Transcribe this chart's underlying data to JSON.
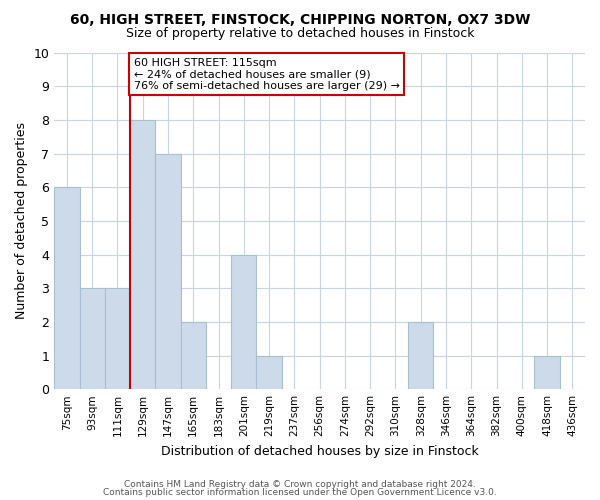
{
  "title": "60, HIGH STREET, FINSTOCK, CHIPPING NORTON, OX7 3DW",
  "subtitle": "Size of property relative to detached houses in Finstock",
  "xlabel": "Distribution of detached houses by size in Finstock",
  "ylabel": "Number of detached properties",
  "bins": [
    "75sqm",
    "93sqm",
    "111sqm",
    "129sqm",
    "147sqm",
    "165sqm",
    "183sqm",
    "201sqm",
    "219sqm",
    "237sqm",
    "256sqm",
    "274sqm",
    "292sqm",
    "310sqm",
    "328sqm",
    "346sqm",
    "364sqm",
    "382sqm",
    "400sqm",
    "418sqm",
    "436sqm"
  ],
  "counts": [
    6,
    3,
    3,
    8,
    7,
    2,
    0,
    4,
    1,
    0,
    0,
    0,
    0,
    0,
    2,
    0,
    0,
    0,
    0,
    1,
    0
  ],
  "bar_color": "#ccdaea",
  "bar_edge_color": "#a8bfd0",
  "vline_x_index": 3,
  "vline_color": "#cc0000",
  "annotation_text": "60 HIGH STREET: 115sqm\n← 24% of detached houses are smaller (9)\n76% of semi-detached houses are larger (29) →",
  "annotation_box_color": "#ffffff",
  "annotation_box_edge": "#cc0000",
  "ylim": [
    0,
    10
  ],
  "yticks": [
    0,
    1,
    2,
    3,
    4,
    5,
    6,
    7,
    8,
    9,
    10
  ],
  "footer_line1": "Contains HM Land Registry data © Crown copyright and database right 2024.",
  "footer_line2": "Contains public sector information licensed under the Open Government Licence v3.0.",
  "background_color": "#ffffff",
  "grid_color": "#c8d4e4"
}
